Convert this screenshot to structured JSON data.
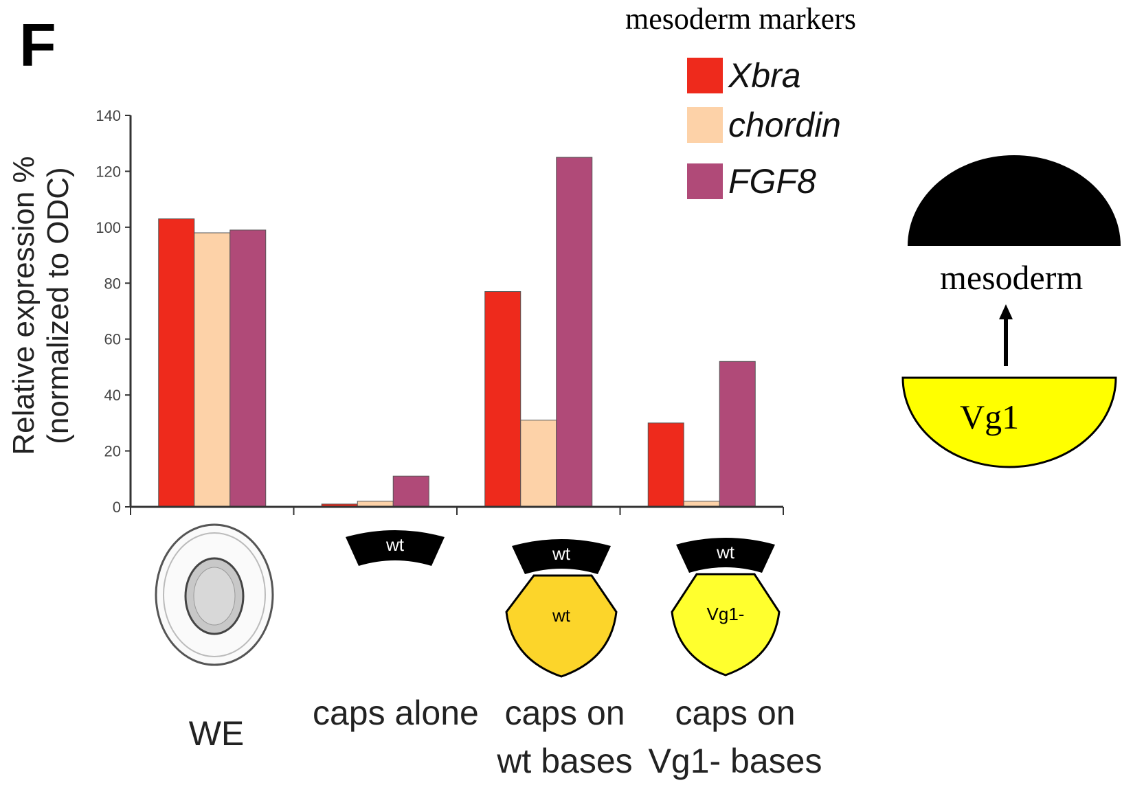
{
  "figure": {
    "panel_letter": "F",
    "legend_title": "mesoderm markers",
    "y_axis_title_line1": "Relative expression %",
    "y_axis_title_line2": "(normalized to ODC)"
  },
  "colors": {
    "xbra": "#ee2a1c",
    "chordin": "#fdd2a8",
    "fgf8": "#b04a78",
    "mesoderm_cap": "#000000",
    "vg1_base": "#ffff00",
    "wt_base_drawing": "#fcd52a",
    "vg1_base_drawing": "#ffff2e"
  },
  "chart_data": {
    "type": "bar",
    "categories": [
      "WE",
      "caps alone",
      "caps on wt bases",
      "caps on Vg1- bases"
    ],
    "category_labels": [
      [
        "WE"
      ],
      [
        "caps alone"
      ],
      [
        "caps on",
        "wt bases"
      ],
      [
        "caps on",
        "Vg1- bases"
      ]
    ],
    "series": [
      {
        "name": "Xbra",
        "values": [
          103,
          1,
          77,
          30
        ]
      },
      {
        "name": "chordin",
        "values": [
          98,
          2,
          31,
          2
        ]
      },
      {
        "name": "FGF8",
        "values": [
          99,
          11,
          125,
          52
        ]
      }
    ],
    "ylim": [
      0,
      140
    ],
    "yticks": [
      0,
      20,
      40,
      60,
      80,
      100,
      120,
      140
    ],
    "ylabel": "Relative expression % (normalized to ODC)",
    "legend_title": "mesoderm markers",
    "legend_position": "top-right",
    "grid": false
  },
  "explant_labels": {
    "cap": "wt",
    "wt_base": "wt",
    "vg1_base": "Vg1-"
  },
  "side_diagram": {
    "mesoderm_label": "mesoderm",
    "vg1_label": "Vg1"
  }
}
